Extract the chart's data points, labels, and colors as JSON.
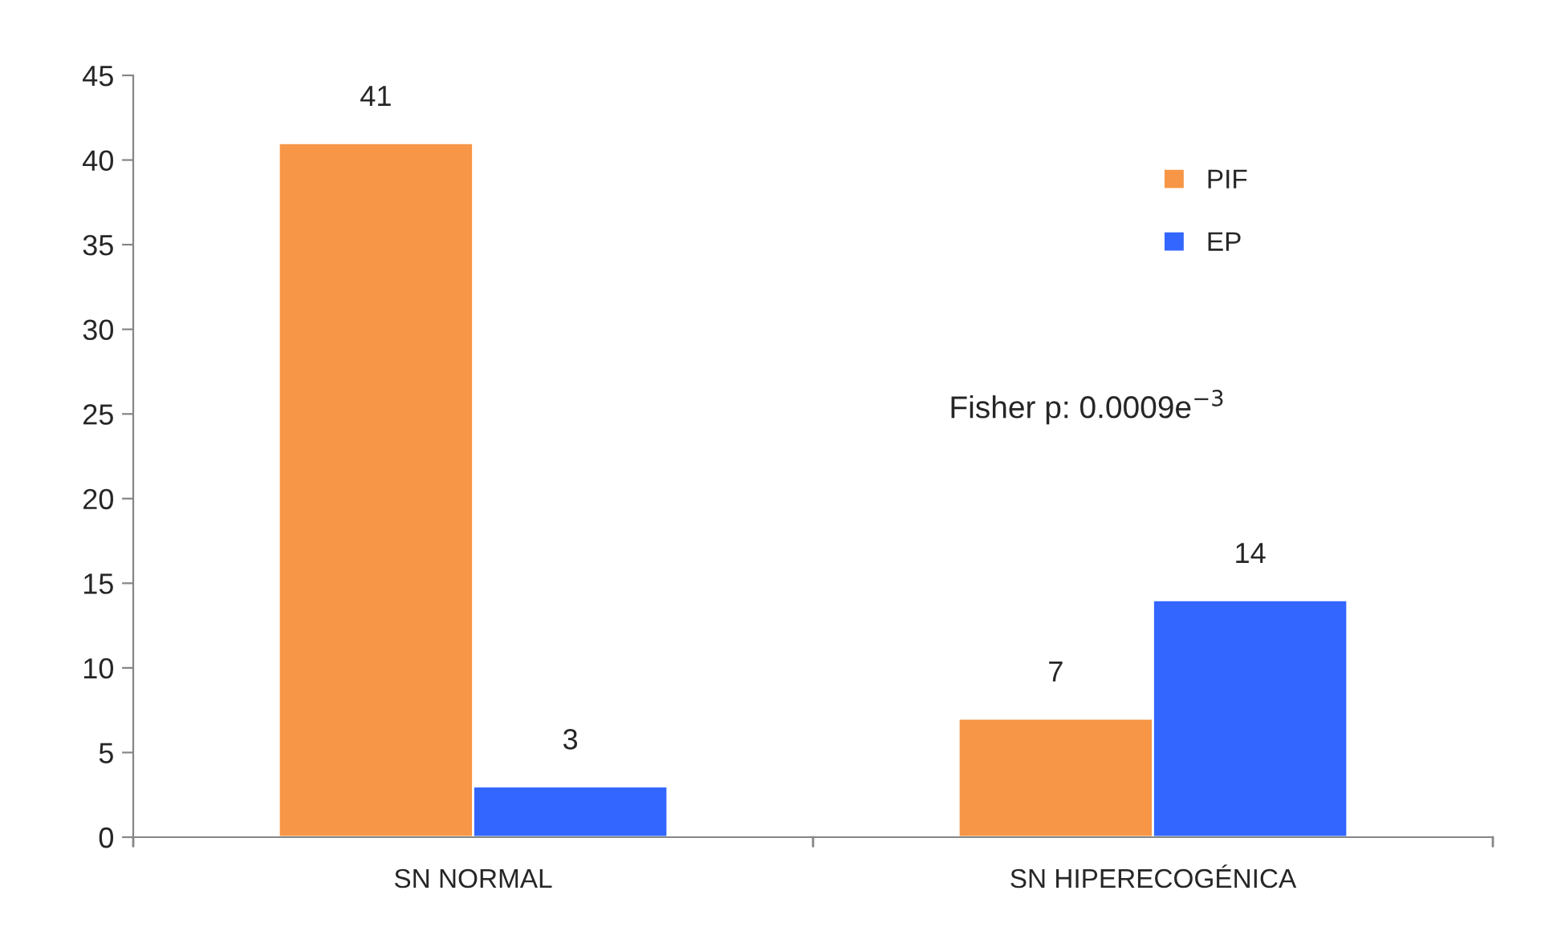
{
  "chart_data": {
    "type": "bar",
    "categories": [
      "SN NORMAL",
      "SN HIPERECOGÉNICA"
    ],
    "series": [
      {
        "name": "PIF",
        "color": "#f79646",
        "values": [
          41,
          7
        ]
      },
      {
        "name": "EP",
        "color": "#3366ff",
        "values": [
          3,
          14
        ]
      }
    ],
    "ylim": [
      0,
      45
    ],
    "yticks": [
      0,
      5,
      10,
      15,
      20,
      25,
      30,
      35,
      40,
      45
    ],
    "data_labels": true,
    "legend": "right",
    "grid": false,
    "annotations": [
      "Fisher p: 0.0009e$^{−3}$"
    ]
  }
}
